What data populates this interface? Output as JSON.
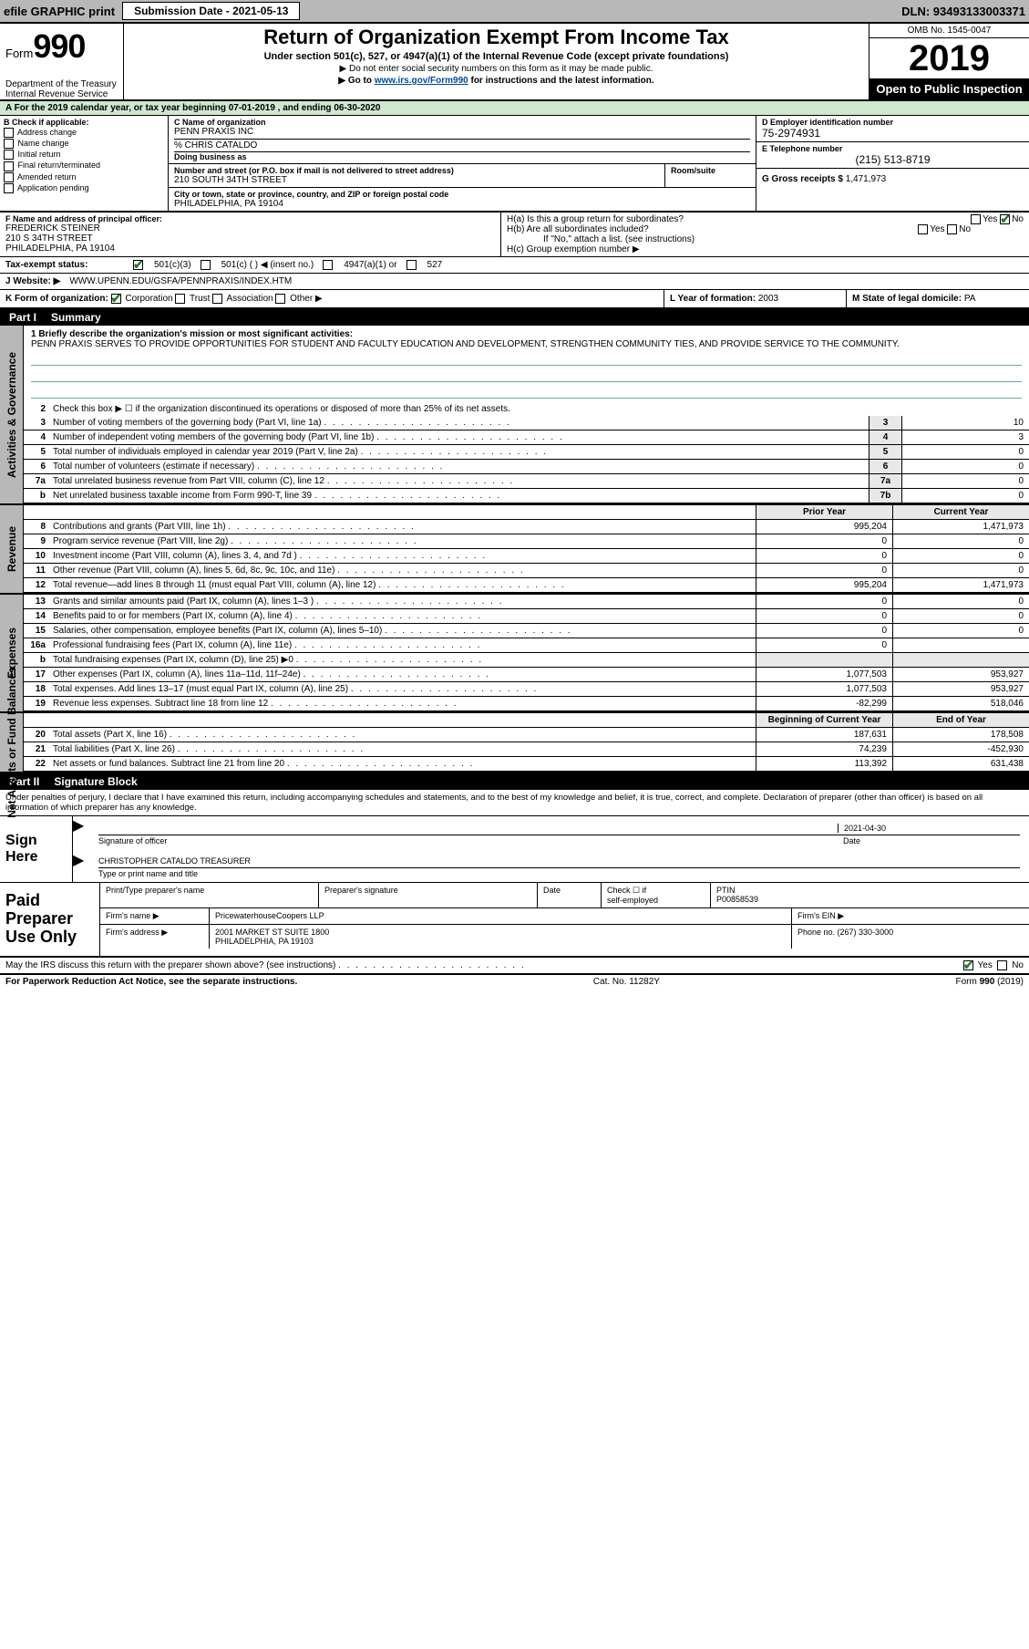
{
  "colors": {
    "bg_gray": "#b8b8b8",
    "hl_green": "#d0e7d0",
    "link": "#004a99",
    "shade": "#e8e8e8",
    "check": "#2a7a2a"
  },
  "topBar": {
    "efile": "efile GRAPHIC print",
    "subDateLabel": "Submission Date - 2021-05-13",
    "dln": "DLN: 93493133003371"
  },
  "header": {
    "formLabel": "Form",
    "formNum": "990",
    "dept": "Department of the Treasury\nInternal Revenue Service",
    "title": "Return of Organization Exempt From Income Tax",
    "sub": "Under section 501(c), 527, or 4947(a)(1) of the Internal Revenue Code (except private foundations)",
    "note1": "▶ Do not enter social security numbers on this form as it may be made public.",
    "note2_pre": "▶ Go to ",
    "note2_link": "www.irs.gov/Form990",
    "note2_post": " for instructions and the latest information.",
    "omb": "OMB No. 1545-0047",
    "year": "2019",
    "open": "Open to Public Inspection"
  },
  "lineA": "A   For the 2019 calendar year, or tax year beginning 07-01-2019    , and ending 06-30-2020",
  "boxB": {
    "label": "B Check if applicable:",
    "items": [
      "Address change",
      "Name change",
      "Initial return",
      "Final return/terminated",
      "Amended return",
      "Application pending"
    ]
  },
  "boxC": {
    "nameLabel": "C Name of organization",
    "name": "PENN PRAXIS INC",
    "careOf": "% CHRIS CATALDO",
    "dbaLabel": "Doing business as",
    "addrLabel": "Number and street (or P.O. box if mail is not delivered to street address)",
    "roomLabel": "Room/suite",
    "addr": "210 SOUTH 34TH STREET",
    "cityLabel": "City or town, state or province, country, and ZIP or foreign postal code",
    "city": "PHILADELPHIA, PA  19104"
  },
  "boxD": {
    "label": "D Employer identification number",
    "val": "75-2974931"
  },
  "boxE": {
    "label": "E Telephone number",
    "val": "(215) 513-8719"
  },
  "boxG": {
    "label": "G Gross receipts $",
    "val": "1,471,973"
  },
  "boxF": {
    "label": "F  Name and address of principal officer:",
    "name": "FREDERICK STEINER",
    "addr": "210 S 34TH STREET",
    "city": "PHILADELPHIA, PA  19104"
  },
  "boxH": {
    "a": "H(a)  Is this a group return for subordinates?",
    "b": "H(b)  Are all subordinates included?",
    "bNote": "If \"No,\" attach a list. (see instructions)",
    "c": "H(c)  Group exemption number ▶",
    "yes": "Yes",
    "no": "No"
  },
  "taxExempt": {
    "label": "Tax-exempt status:",
    "o1": "501(c)(3)",
    "o2": "501(c) (  ) ◀ (insert no.)",
    "o3": "4947(a)(1) or",
    "o4": "527"
  },
  "lineJ": {
    "label": "J   Website: ▶",
    "val": "WWW.UPENN.EDU/GSFA/PENNPRAXIS/INDEX.HTM"
  },
  "lineK": {
    "label": "K Form of organization:",
    "o1": "Corporation",
    "o2": "Trust",
    "o3": "Association",
    "o4": "Other ▶"
  },
  "lineL": {
    "label": "L Year of formation:",
    "val": "2003"
  },
  "lineM": {
    "label": "M State of legal domicile:",
    "val": "PA"
  },
  "partI": {
    "num": "Part I",
    "title": "Summary"
  },
  "mission": {
    "label": "1  Briefly describe the organization's mission or most significant activities:",
    "text": "PENN PRAXIS SERVES TO PROVIDE OPPORTUNITIES FOR STUDENT AND FACULTY EDUCATION AND DEVELOPMENT, STRENGTHEN COMMUNITY TIES, AND PROVIDE SERVICE TO THE COMMUNITY."
  },
  "gov": {
    "l2": "Check this box ▶ ☐  if the organization discontinued its operations or disposed of more than 25% of its net assets.",
    "rows": [
      {
        "n": "3",
        "d": "Number of voting members of the governing body (Part VI, line 1a)",
        "b": "3",
        "v": "10"
      },
      {
        "n": "4",
        "d": "Number of independent voting members of the governing body (Part VI, line 1b)",
        "b": "4",
        "v": "3"
      },
      {
        "n": "5",
        "d": "Total number of individuals employed in calendar year 2019 (Part V, line 2a)",
        "b": "5",
        "v": "0"
      },
      {
        "n": "6",
        "d": "Total number of volunteers (estimate if necessary)",
        "b": "6",
        "v": "0"
      },
      {
        "n": "7a",
        "d": "Total unrelated business revenue from Part VIII, column (C), line 12",
        "b": "7a",
        "v": "0"
      },
      {
        "n": "b",
        "d": "Net unrelated business taxable income from Form 990-T, line 39",
        "b": "7b",
        "v": "0"
      }
    ]
  },
  "colHeads": {
    "prior": "Prior Year",
    "current": "Current Year",
    "beg": "Beginning of Current Year",
    "end": "End of Year"
  },
  "revenue": [
    {
      "n": "8",
      "d": "Contributions and grants (Part VIII, line 1h)",
      "p": "995,204",
      "c": "1,471,973"
    },
    {
      "n": "9",
      "d": "Program service revenue (Part VIII, line 2g)",
      "p": "0",
      "c": "0"
    },
    {
      "n": "10",
      "d": "Investment income (Part VIII, column (A), lines 3, 4, and 7d )",
      "p": "0",
      "c": "0"
    },
    {
      "n": "11",
      "d": "Other revenue (Part VIII, column (A), lines 5, 6d, 8c, 9c, 10c, and 11e)",
      "p": "0",
      "c": "0"
    },
    {
      "n": "12",
      "d": "Total revenue—add lines 8 through 11 (must equal Part VIII, column (A), line 12)",
      "p": "995,204",
      "c": "1,471,973"
    }
  ],
  "expenses": [
    {
      "n": "13",
      "d": "Grants and similar amounts paid (Part IX, column (A), lines 1–3 )",
      "p": "0",
      "c": "0"
    },
    {
      "n": "14",
      "d": "Benefits paid to or for members (Part IX, column (A), line 4)",
      "p": "0",
      "c": "0"
    },
    {
      "n": "15",
      "d": "Salaries, other compensation, employee benefits (Part IX, column (A), lines 5–10)",
      "p": "0",
      "c": "0"
    },
    {
      "n": "16a",
      "d": "Professional fundraising fees (Part IX, column (A), line 11e)",
      "p": "0",
      "c": ""
    },
    {
      "n": "b",
      "d": "Total fundraising expenses (Part IX, column (D), line 25) ▶0",
      "p": "shade",
      "c": "shade"
    },
    {
      "n": "17",
      "d": "Other expenses (Part IX, column (A), lines 11a–11d, 11f–24e)",
      "p": "1,077,503",
      "c": "953,927"
    },
    {
      "n": "18",
      "d": "Total expenses. Add lines 13–17 (must equal Part IX, column (A), line 25)",
      "p": "1,077,503",
      "c": "953,927"
    },
    {
      "n": "19",
      "d": "Revenue less expenses. Subtract line 18 from line 12",
      "p": "-82,299",
      "c": "518,046"
    }
  ],
  "netassets": [
    {
      "n": "20",
      "d": "Total assets (Part X, line 16)",
      "p": "187,631",
      "c": "178,508"
    },
    {
      "n": "21",
      "d": "Total liabilities (Part X, line 26)",
      "p": "74,239",
      "c": "-452,930"
    },
    {
      "n": "22",
      "d": "Net assets or fund balances. Subtract line 21 from line 20",
      "p": "113,392",
      "c": "631,438"
    }
  ],
  "partII": {
    "num": "Part II",
    "title": "Signature Block"
  },
  "underPen": "Under penalties of perjury, I declare that I have examined this return, including accompanying schedules and statements, and to the best of my knowledge and belief, it is true, correct, and complete. Declaration of preparer (other than officer) is based on all information of which preparer has any knowledge.",
  "sign": {
    "label": "Sign Here",
    "sigOfficer": "Signature of officer",
    "date": "Date",
    "dateVal": "2021-04-30",
    "nameTitle": "CHRISTOPHER CATALDO  TREASURER",
    "typeLabel": "Type or print name and title"
  },
  "paid": {
    "label": "Paid Preparer Use Only",
    "r1c1": "Print/Type preparer's name",
    "r1c2": "Preparer's signature",
    "r1c3": "Date",
    "r1c4a": "Check ☐ if",
    "r1c4b": "self-employed",
    "r1c5a": "PTIN",
    "r1c5b": "P00858539",
    "r2a": "Firm's name    ▶",
    "r2b": "PricewaterhouseCoopers LLP",
    "r2c": "Firm's EIN ▶",
    "r3a": "Firm's address ▶",
    "r3b": "2001 MARKET ST SUITE 1800",
    "r3b2": "PHILADELPHIA, PA  19103",
    "r3c": "Phone no. (267) 330-3000"
  },
  "discuss": {
    "q": "May the IRS discuss this return with the preparer shown above? (see instructions)",
    "yes": "Yes",
    "no": "No"
  },
  "footer": {
    "left": "For Paperwork Reduction Act Notice, see the separate instructions.",
    "mid": "Cat. No. 11282Y",
    "right": "Form 990 (2019)"
  },
  "vtabs": {
    "gov": "Activities & Governance",
    "rev": "Revenue",
    "exp": "Expenses",
    "net": "Net Assets or Fund Balances"
  }
}
